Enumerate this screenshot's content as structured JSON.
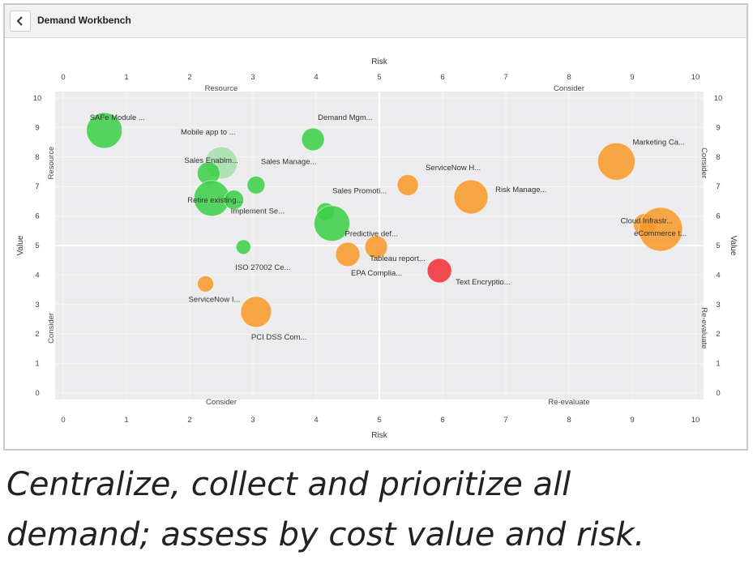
{
  "header": {
    "back_icon": "chevron-left-icon",
    "title": "Demand Workbench"
  },
  "caption": {
    "line1": "Centralize, collect and prioritize all",
    "line2": "demand; assess by cost value and  risk."
  },
  "chart_data": {
    "type": "scatter",
    "variant": "bubble",
    "xlabel": "Risk",
    "ylabel": "Value",
    "xlim": [
      0,
      10
    ],
    "ylim": [
      0,
      10
    ],
    "xticks": [
      "0",
      "1",
      "2",
      "3",
      "4",
      "5",
      "6",
      "7",
      "8",
      "9",
      "10"
    ],
    "yticks": [
      "0",
      "1",
      "2",
      "3",
      "4",
      "5",
      "6",
      "7",
      "8",
      "9",
      "10"
    ],
    "quadrant_labels": {
      "top_left": "Resource",
      "top_right": "Consider",
      "bottom_left": "Consider",
      "bottom_right": "Re-evaluate",
      "left_upper": "Resource",
      "left_lower": "Consider",
      "right_upper": "Consider",
      "right_lower": "Re-evaluate"
    },
    "colors": {
      "green": "#3fcf4a",
      "orange": "#f79a2c",
      "red": "#f0323a"
    },
    "points": [
      {
        "label": "SAFe Module ...",
        "x": 0.65,
        "y": 8.9,
        "size": 22,
        "color": "green"
      },
      {
        "label": "Demand Mgm...",
        "x": 3.95,
        "y": 8.6,
        "size": 14,
        "color": "green"
      },
      {
        "label": "Mobile app to ...",
        "x": 2.5,
        "y": 7.8,
        "size": 20,
        "color": "green",
        "faded": true
      },
      {
        "label": "Sales Manage...",
        "x": 3.05,
        "y": 7.05,
        "size": 11,
        "color": "green"
      },
      {
        "label": "Sales Enablm...",
        "x": 2.3,
        "y": 7.45,
        "size": 14,
        "color": "green"
      },
      {
        "label": "Retire existing...",
        "x": 2.35,
        "y": 6.6,
        "size": 22,
        "color": "green"
      },
      {
        "label": "Implement Se...",
        "x": 2.7,
        "y": 6.55,
        "size": 12,
        "color": "green"
      },
      {
        "label": "",
        "x": 4.15,
        "y": 6.15,
        "size": 11,
        "color": "green"
      },
      {
        "label": "Predictive def...",
        "x": 4.25,
        "y": 5.75,
        "size": 22,
        "color": "green"
      },
      {
        "label": "ISO 27002 Ce...",
        "x": 2.85,
        "y": 4.95,
        "size": 9,
        "color": "green"
      },
      {
        "label": "Sales Promoti...",
        "x": 5.45,
        "y": 7.05,
        "size": 13,
        "color": "orange"
      },
      {
        "label": "ServiceNow H...",
        "x": 6.45,
        "y": 6.65,
        "size": 21,
        "color": "orange"
      },
      {
        "label": "Risk Manage...",
        "x": 6.45,
        "y": 6.65,
        "size": 0,
        "color": "orange"
      },
      {
        "label": "Marketing Ca...",
        "x": 8.75,
        "y": 7.85,
        "size": 23,
        "color": "orange"
      },
      {
        "label": "Cloud Infrastr...",
        "x": 9.2,
        "y": 5.7,
        "size": 14,
        "color": "orange"
      },
      {
        "label": "eCommerce t...",
        "x": 9.45,
        "y": 5.55,
        "size": 27,
        "color": "orange"
      },
      {
        "label": "Tableau report...",
        "x": 4.95,
        "y": 4.95,
        "size": 14,
        "color": "orange"
      },
      {
        "label": "EPA Complia...",
        "x": 4.5,
        "y": 4.7,
        "size": 15,
        "color": "orange"
      },
      {
        "label": "Text Encryptio...",
        "x": 5.95,
        "y": 4.15,
        "size": 15,
        "color": "red"
      },
      {
        "label": "ServiceNow I...",
        "x": 2.25,
        "y": 3.7,
        "size": 10,
        "color": "orange"
      },
      {
        "label": "PCI DSS Com...",
        "x": 3.05,
        "y": 2.75,
        "size": 19,
        "color": "orange"
      }
    ]
  }
}
